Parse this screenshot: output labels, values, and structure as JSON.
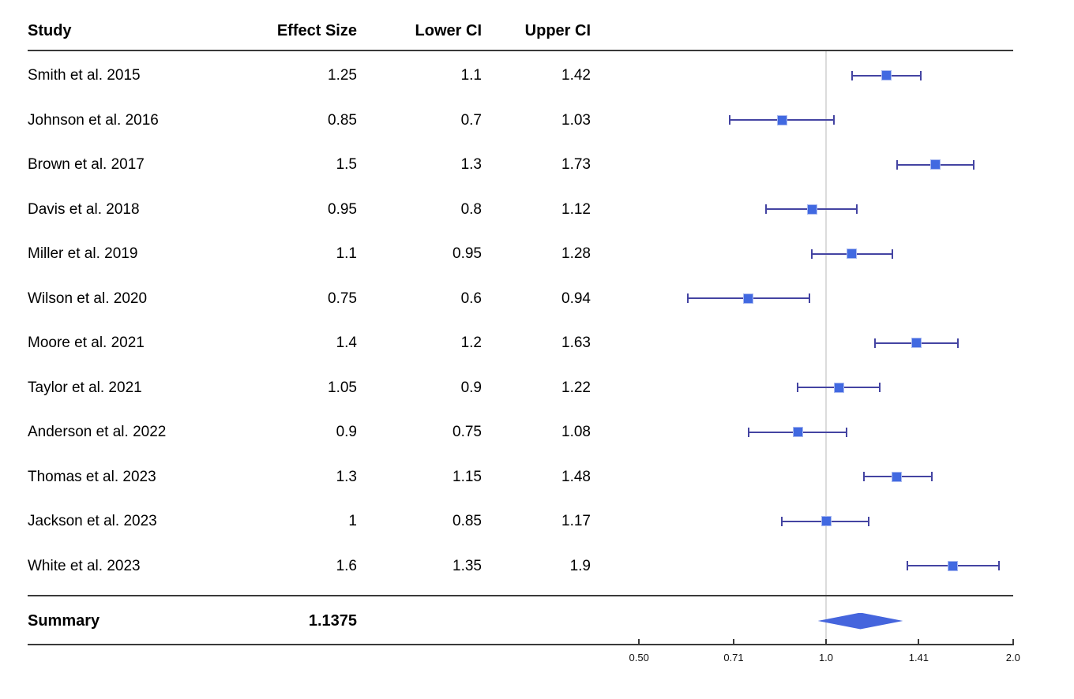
{
  "header": {
    "study": "Study",
    "effect_size": "Effect Size",
    "lower_ci": "Lower CI",
    "upper_ci": "Upper CI"
  },
  "summary_row": {
    "label": "Summary",
    "effect_text": "1.1375"
  },
  "chart_data": {
    "type": "forest",
    "x_scale": "log2",
    "x_axis": {
      "tick_values": [
        0.5,
        0.71,
        1.0,
        1.41,
        2.0
      ],
      "tick_labels": [
        "0.50",
        "0.71",
        "1.0",
        "1.41",
        "2.0"
      ],
      "range": [
        0.5,
        2.0
      ]
    },
    "reference_line_x": 1.0,
    "studies": [
      {
        "label": "Smith et al. 2015",
        "effect": 1.25,
        "lower": 1.1,
        "upper": 1.42
      },
      {
        "label": "Johnson et al. 2016",
        "effect": 0.85,
        "lower": 0.7,
        "upper": 1.03
      },
      {
        "label": "Brown et al. 2017",
        "effect": 1.5,
        "lower": 1.3,
        "upper": 1.73
      },
      {
        "label": "Davis et al. 2018",
        "effect": 0.95,
        "lower": 0.8,
        "upper": 1.12
      },
      {
        "label": "Miller et al. 2019",
        "effect": 1.1,
        "lower": 0.95,
        "upper": 1.28
      },
      {
        "label": "Wilson et al. 2020",
        "effect": 0.75,
        "lower": 0.6,
        "upper": 0.94
      },
      {
        "label": "Moore et al. 2021",
        "effect": 1.4,
        "lower": 1.2,
        "upper": 1.63
      },
      {
        "label": "Taylor et al. 2021",
        "effect": 1.05,
        "lower": 0.9,
        "upper": 1.22
      },
      {
        "label": "Anderson et al. 2022",
        "effect": 0.9,
        "lower": 0.75,
        "upper": 1.08
      },
      {
        "label": "Thomas et al. 2023",
        "effect": 1.3,
        "lower": 1.15,
        "upper": 1.48
      },
      {
        "label": "Jackson et al. 2023",
        "effect": 1,
        "lower": 0.85,
        "upper": 1.17
      },
      {
        "label": "White et al. 2023",
        "effect": 1.6,
        "lower": 1.35,
        "upper": 1.9
      }
    ],
    "summary": {
      "label": "Summary",
      "effect": 1.1375,
      "diamond_lower_est": 0.97,
      "diamond_upper_est": 1.33
    },
    "colors": {
      "marker_fill": "#4169e1",
      "marker_border": "#a8b8f0",
      "ci_line": "#4444a2",
      "diamond_fill": "#4565dd",
      "reference_line": "#dcdcdc",
      "rule": "#3a3a3a",
      "text": "#000000"
    }
  }
}
